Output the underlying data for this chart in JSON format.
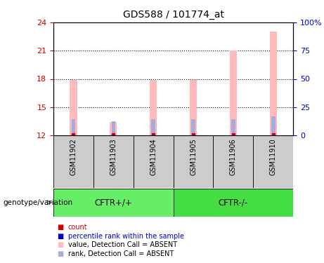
{
  "title": "GDS588 / 101774_at",
  "samples": [
    "GSM11902",
    "GSM11903",
    "GSM11904",
    "GSM11905",
    "GSM11906",
    "GSM11910"
  ],
  "groups": [
    {
      "label": "CFTR+/+",
      "indices": [
        0,
        1,
        2
      ],
      "color": "#66ee66"
    },
    {
      "label": "CFTR-/-",
      "indices": [
        3,
        4,
        5
      ],
      "color": "#44dd44"
    }
  ],
  "ylim": [
    12,
    24
  ],
  "yticks_left": [
    12,
    15,
    18,
    21,
    24
  ],
  "right_ticks_y": [
    12,
    15,
    18,
    21,
    24
  ],
  "right_labels": [
    "0",
    "25",
    "50",
    "75",
    "100%"
  ],
  "pink_bar_values": [
    17.9,
    13.4,
    17.9,
    17.9,
    21.0,
    23.0
  ],
  "pink_bar_color": "#ffbbbb",
  "pink_bar_width": 0.18,
  "blue_bar_values": [
    13.7,
    13.5,
    13.7,
    13.7,
    13.7,
    14.0
  ],
  "blue_bar_color": "#aaaadd",
  "blue_bar_width": 0.1,
  "red_mark_color": "#cc0000",
  "grid_yticks": [
    15,
    18,
    21
  ],
  "legend_items": [
    {
      "label": "count",
      "color": "#cc0000",
      "marker_color": "#cc0000"
    },
    {
      "label": "percentile rank within the sample",
      "color": "#0000cc",
      "marker_color": "#0000cc"
    },
    {
      "label": "value, Detection Call = ABSENT",
      "color": "#000000",
      "marker_color": "#ffbbbb"
    },
    {
      "label": "rank, Detection Call = ABSENT",
      "color": "#000000",
      "marker_color": "#aaaadd"
    }
  ],
  "genotype_label": "genotype/variation",
  "left_axis_color": "#cc0000",
  "right_axis_color": "#0000cc",
  "plot_bg_color": "#ffffff",
  "sample_panel_color": "#cccccc",
  "tick_labelsize": 8
}
